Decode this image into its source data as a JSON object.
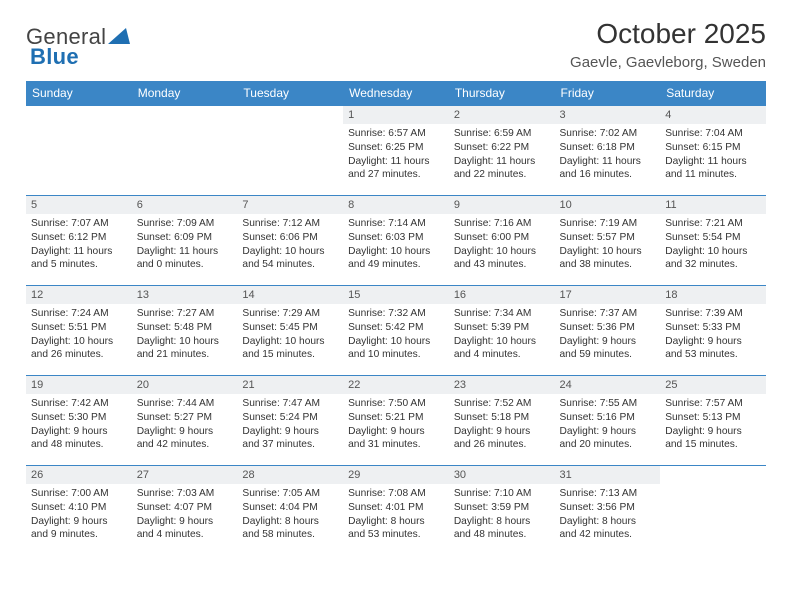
{
  "brand": {
    "name_a": "General",
    "name_b": "Blue",
    "tri_color": "#1f6fb2"
  },
  "title": "October 2025",
  "location": "Gaevle, Gaevleborg, Sweden",
  "colors": {
    "header_bg": "#3b86c6",
    "header_text": "#ffffff",
    "daynum_bg": "#eef0f2",
    "rule": "#3b86c6"
  },
  "day_headers": [
    "Sunday",
    "Monday",
    "Tuesday",
    "Wednesday",
    "Thursday",
    "Friday",
    "Saturday"
  ],
  "weeks": [
    [
      {
        "n": "",
        "sr": "",
        "ss": "",
        "dl": ""
      },
      {
        "n": "",
        "sr": "",
        "ss": "",
        "dl": ""
      },
      {
        "n": "",
        "sr": "",
        "ss": "",
        "dl": ""
      },
      {
        "n": "1",
        "sr": "Sunrise: 6:57 AM",
        "ss": "Sunset: 6:25 PM",
        "dl": "Daylight: 11 hours and 27 minutes."
      },
      {
        "n": "2",
        "sr": "Sunrise: 6:59 AM",
        "ss": "Sunset: 6:22 PM",
        "dl": "Daylight: 11 hours and 22 minutes."
      },
      {
        "n": "3",
        "sr": "Sunrise: 7:02 AM",
        "ss": "Sunset: 6:18 PM",
        "dl": "Daylight: 11 hours and 16 minutes."
      },
      {
        "n": "4",
        "sr": "Sunrise: 7:04 AM",
        "ss": "Sunset: 6:15 PM",
        "dl": "Daylight: 11 hours and 11 minutes."
      }
    ],
    [
      {
        "n": "5",
        "sr": "Sunrise: 7:07 AM",
        "ss": "Sunset: 6:12 PM",
        "dl": "Daylight: 11 hours and 5 minutes."
      },
      {
        "n": "6",
        "sr": "Sunrise: 7:09 AM",
        "ss": "Sunset: 6:09 PM",
        "dl": "Daylight: 11 hours and 0 minutes."
      },
      {
        "n": "7",
        "sr": "Sunrise: 7:12 AM",
        "ss": "Sunset: 6:06 PM",
        "dl": "Daylight: 10 hours and 54 minutes."
      },
      {
        "n": "8",
        "sr": "Sunrise: 7:14 AM",
        "ss": "Sunset: 6:03 PM",
        "dl": "Daylight: 10 hours and 49 minutes."
      },
      {
        "n": "9",
        "sr": "Sunrise: 7:16 AM",
        "ss": "Sunset: 6:00 PM",
        "dl": "Daylight: 10 hours and 43 minutes."
      },
      {
        "n": "10",
        "sr": "Sunrise: 7:19 AM",
        "ss": "Sunset: 5:57 PM",
        "dl": "Daylight: 10 hours and 38 minutes."
      },
      {
        "n": "11",
        "sr": "Sunrise: 7:21 AM",
        "ss": "Sunset: 5:54 PM",
        "dl": "Daylight: 10 hours and 32 minutes."
      }
    ],
    [
      {
        "n": "12",
        "sr": "Sunrise: 7:24 AM",
        "ss": "Sunset: 5:51 PM",
        "dl": "Daylight: 10 hours and 26 minutes."
      },
      {
        "n": "13",
        "sr": "Sunrise: 7:27 AM",
        "ss": "Sunset: 5:48 PM",
        "dl": "Daylight: 10 hours and 21 minutes."
      },
      {
        "n": "14",
        "sr": "Sunrise: 7:29 AM",
        "ss": "Sunset: 5:45 PM",
        "dl": "Daylight: 10 hours and 15 minutes."
      },
      {
        "n": "15",
        "sr": "Sunrise: 7:32 AM",
        "ss": "Sunset: 5:42 PM",
        "dl": "Daylight: 10 hours and 10 minutes."
      },
      {
        "n": "16",
        "sr": "Sunrise: 7:34 AM",
        "ss": "Sunset: 5:39 PM",
        "dl": "Daylight: 10 hours and 4 minutes."
      },
      {
        "n": "17",
        "sr": "Sunrise: 7:37 AM",
        "ss": "Sunset: 5:36 PM",
        "dl": "Daylight: 9 hours and 59 minutes."
      },
      {
        "n": "18",
        "sr": "Sunrise: 7:39 AM",
        "ss": "Sunset: 5:33 PM",
        "dl": "Daylight: 9 hours and 53 minutes."
      }
    ],
    [
      {
        "n": "19",
        "sr": "Sunrise: 7:42 AM",
        "ss": "Sunset: 5:30 PM",
        "dl": "Daylight: 9 hours and 48 minutes."
      },
      {
        "n": "20",
        "sr": "Sunrise: 7:44 AM",
        "ss": "Sunset: 5:27 PM",
        "dl": "Daylight: 9 hours and 42 minutes."
      },
      {
        "n": "21",
        "sr": "Sunrise: 7:47 AM",
        "ss": "Sunset: 5:24 PM",
        "dl": "Daylight: 9 hours and 37 minutes."
      },
      {
        "n": "22",
        "sr": "Sunrise: 7:50 AM",
        "ss": "Sunset: 5:21 PM",
        "dl": "Daylight: 9 hours and 31 minutes."
      },
      {
        "n": "23",
        "sr": "Sunrise: 7:52 AM",
        "ss": "Sunset: 5:18 PM",
        "dl": "Daylight: 9 hours and 26 minutes."
      },
      {
        "n": "24",
        "sr": "Sunrise: 7:55 AM",
        "ss": "Sunset: 5:16 PM",
        "dl": "Daylight: 9 hours and 20 minutes."
      },
      {
        "n": "25",
        "sr": "Sunrise: 7:57 AM",
        "ss": "Sunset: 5:13 PM",
        "dl": "Daylight: 9 hours and 15 minutes."
      }
    ],
    [
      {
        "n": "26",
        "sr": "Sunrise: 7:00 AM",
        "ss": "Sunset: 4:10 PM",
        "dl": "Daylight: 9 hours and 9 minutes."
      },
      {
        "n": "27",
        "sr": "Sunrise: 7:03 AM",
        "ss": "Sunset: 4:07 PM",
        "dl": "Daylight: 9 hours and 4 minutes."
      },
      {
        "n": "28",
        "sr": "Sunrise: 7:05 AM",
        "ss": "Sunset: 4:04 PM",
        "dl": "Daylight: 8 hours and 58 minutes."
      },
      {
        "n": "29",
        "sr": "Sunrise: 7:08 AM",
        "ss": "Sunset: 4:01 PM",
        "dl": "Daylight: 8 hours and 53 minutes."
      },
      {
        "n": "30",
        "sr": "Sunrise: 7:10 AM",
        "ss": "Sunset: 3:59 PM",
        "dl": "Daylight: 8 hours and 48 minutes."
      },
      {
        "n": "31",
        "sr": "Sunrise: 7:13 AM",
        "ss": "Sunset: 3:56 PM",
        "dl": "Daylight: 8 hours and 42 minutes."
      },
      {
        "n": "",
        "sr": "",
        "ss": "",
        "dl": ""
      }
    ]
  ]
}
